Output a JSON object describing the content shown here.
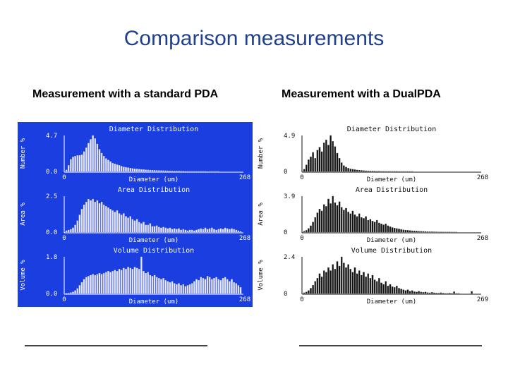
{
  "slide": {
    "title": "Comparison measurements",
    "left_caption": "Measurement with a standard PDA",
    "right_caption": "Measurement with a DualPDA"
  },
  "colors": {
    "title": "#1f3f8f",
    "left_panel_bg": "#1a3ee0",
    "left_text": "#ffffff",
    "left_bar": "#e8e8ff",
    "right_panel_bg": "#ffffff",
    "right_text": "#111111",
    "right_bar": "#111111"
  },
  "chart_data": [
    {
      "panel": "standard-pda",
      "type": "bar",
      "plots": [
        {
          "title": "Diameter Distribution",
          "ylabel": "Number %",
          "xlabel": "Diameter (um)",
          "ylim": [
            0.0,
            4.7
          ],
          "ytick_labels": [
            "4.7",
            "0.0"
          ],
          "xtick_labels": [
            "0",
            "268"
          ],
          "x_range": [
            0,
            268
          ],
          "values": [
            0.2,
            0.8,
            1.6,
            1.9,
            2.0,
            2.1,
            2.1,
            2.2,
            2.6,
            3.1,
            3.7,
            4.2,
            4.7,
            4.3,
            3.6,
            2.9,
            2.4,
            2.0,
            1.7,
            1.5,
            1.3,
            1.1,
            1.0,
            0.9,
            0.8,
            0.7,
            0.6,
            0.55,
            0.5,
            0.45,
            0.4,
            0.36,
            0.33,
            0.3,
            0.27,
            0.25,
            0.22,
            0.2,
            0.18,
            0.17,
            0.15,
            0.14,
            0.13,
            0.12,
            0.11,
            0.1,
            0.09,
            0.08,
            0.08,
            0.07,
            0.06,
            0.06,
            0.05,
            0.05,
            0.04,
            0.04,
            0.03,
            0.03,
            0.03,
            0.02,
            0.02,
            0.02,
            0.02,
            0.02,
            0.01,
            0.01,
            0.01,
            0.01,
            0.01,
            0.01,
            0,
            0,
            0,
            0,
            0,
            0,
            0,
            0,
            0,
            0
          ]
        },
        {
          "title": "Area Distribution",
          "ylabel": "Area %",
          "xlabel": "Diameter (um)",
          "ylim": [
            0.0,
            2.5
          ],
          "ytick_labels": [
            "2.5",
            "0.0"
          ],
          "xtick_labels": [
            "0",
            "268"
          ],
          "x_range": [
            0,
            268
          ],
          "values": [
            0.1,
            0.15,
            0.2,
            0.3,
            0.5,
            0.8,
            1.2,
            1.6,
            1.9,
            2.1,
            2.3,
            2.2,
            2.3,
            2.1,
            2.2,
            2.0,
            2.1,
            1.9,
            1.8,
            1.7,
            1.6,
            1.5,
            1.4,
            1.5,
            1.3,
            1.2,
            1.3,
            1.1,
            1.0,
            1.1,
            0.9,
            0.8,
            0.9,
            0.7,
            0.6,
            0.7,
            0.5,
            0.5,
            0.6,
            0.4,
            0.4,
            0.45,
            0.35,
            0.3,
            0.35,
            0.3,
            0.25,
            0.3,
            0.2,
            0.25,
            0.2,
            0.25,
            0.15,
            0.2,
            0.15,
            0.1,
            0.15,
            0.15,
            0.1,
            0.15,
            0.2,
            0.25,
            0.2,
            0.3,
            0.2,
            0.25,
            0.3,
            0.2,
            0.15,
            0.2,
            0.25,
            0.2,
            0.3,
            0.25,
            0.2,
            0.25,
            0.2,
            0.15,
            0.1,
            0.05
          ]
        },
        {
          "title": "Volume Distribution",
          "ylabel": "Volume %",
          "xlabel": "Diameter (um)",
          "ylim": [
            0.0,
            1.8
          ],
          "ytick_labels": [
            "1.8",
            "0.0"
          ],
          "xtick_labels": [
            "0",
            "268"
          ],
          "x_range": [
            0,
            268
          ],
          "values": [
            0.02,
            0.03,
            0.05,
            0.08,
            0.15,
            0.25,
            0.4,
            0.55,
            0.7,
            0.8,
            0.85,
            0.9,
            0.95,
            0.9,
            0.95,
            1.0,
            0.95,
            1.0,
            1.05,
            1.1,
            1.05,
            1.1,
            1.15,
            1.1,
            1.2,
            1.15,
            1.25,
            1.2,
            1.3,
            1.25,
            1.2,
            1.3,
            1.25,
            1.2,
            1.8,
            1.1,
            1.0,
            1.05,
            0.9,
            0.85,
            0.9,
            0.8,
            0.75,
            0.7,
            0.75,
            0.65,
            0.6,
            0.55,
            0.6,
            0.5,
            0.45,
            0.5,
            0.4,
            0.45,
            0.35,
            0.4,
            0.45,
            0.5,
            0.6,
            0.7,
            0.65,
            0.8,
            0.75,
            0.7,
            0.85,
            0.8,
            0.7,
            0.75,
            0.8,
            0.7,
            0.65,
            0.75,
            0.8,
            0.7,
            0.6,
            0.7,
            0.55,
            0.5,
            0.4,
            0.3
          ]
        }
      ]
    },
    {
      "panel": "dual-pda",
      "type": "bar",
      "plots": [
        {
          "title": "Diameter Distribution",
          "ylabel": "Number %",
          "xlabel": "Diameter (um)",
          "ylim": [
            0,
            4.9
          ],
          "ytick_labels": [
            "4.9",
            "0"
          ],
          "xtick_labels": [
            "0",
            "268"
          ],
          "x_range": [
            0,
            268
          ],
          "values": [
            0.3,
            0.9,
            1.6,
            2.0,
            2.6,
            1.8,
            2.9,
            3.3,
            2.7,
            3.9,
            4.3,
            3.6,
            4.9,
            4.1,
            3.4,
            2.5,
            1.8,
            1.2,
            0.8,
            0.6,
            0.45,
            0.35,
            0.3,
            0.25,
            0.2,
            0.18,
            0.15,
            0.12,
            0.1,
            0.09,
            0.08,
            0.07,
            0.06,
            0.05,
            0.05,
            0.04,
            0.04,
            0.03,
            0.03,
            0.02,
            0.02,
            0.02,
            0.02,
            0.01,
            0.01,
            0.01,
            0.01,
            0.01,
            0.01,
            0.01,
            0,
            0,
            0,
            0,
            0,
            0,
            0,
            0,
            0,
            0,
            0,
            0,
            0,
            0,
            0,
            0,
            0,
            0,
            0,
            0,
            0,
            0,
            0,
            0,
            0,
            0,
            0,
            0,
            0,
            0
          ]
        },
        {
          "title": "Area Distribution",
          "ylabel": "Area %",
          "xlabel": "Diameter (um)",
          "ylim": [
            0,
            3.9
          ],
          "ytick_labels": [
            "3.9",
            "0"
          ],
          "xtick_labels": [
            "0",
            "268"
          ],
          "x_range": [
            0,
            268
          ],
          "values": [
            0.1,
            0.2,
            0.4,
            0.7,
            1.1,
            1.6,
            2.1,
            2.5,
            2.3,
            3.0,
            2.8,
            3.6,
            3.1,
            3.9,
            3.2,
            2.9,
            3.3,
            2.7,
            2.4,
            2.6,
            2.2,
            2.0,
            2.3,
            1.9,
            1.7,
            2.0,
            1.6,
            1.5,
            1.7,
            1.3,
            1.4,
            1.2,
            1.1,
            1.3,
            1.0,
            0.9,
            0.8,
            0.9,
            0.7,
            0.6,
            0.5,
            0.45,
            0.4,
            0.35,
            0.3,
            0.25,
            0.22,
            0.2,
            0.18,
            0.15,
            0.13,
            0.12,
            0.1,
            0.09,
            0.08,
            0.07,
            0.06,
            0.05,
            0.05,
            0.04,
            0.04,
            0.03,
            0.03,
            0.02,
            0.02,
            0.02,
            0.02,
            0.01,
            0.01,
            0.01,
            0,
            0,
            0,
            0,
            0,
            0,
            0,
            0,
            0,
            0
          ]
        },
        {
          "title": "Volume Distribution",
          "ylabel": "Volume %",
          "xlabel": "Diameter (um)",
          "ylim": [
            0,
            2.4
          ],
          "ytick_labels": [
            "2.4",
            "0"
          ],
          "xtick_labels": [
            "0",
            "269"
          ],
          "x_range": [
            0,
            269
          ],
          "values": [
            0.05,
            0.1,
            0.2,
            0.35,
            0.55,
            0.8,
            1.0,
            1.3,
            1.1,
            1.5,
            1.4,
            1.7,
            1.5,
            1.9,
            1.6,
            2.1,
            1.8,
            2.4,
            2.0,
            1.7,
            1.9,
            1.6,
            1.4,
            1.7,
            1.3,
            1.5,
            1.2,
            1.4,
            1.1,
            1.3,
            1.0,
            1.2,
            0.9,
            0.8,
            1.0,
            0.7,
            0.6,
            0.8,
            0.5,
            0.6,
            0.45,
            0.4,
            0.5,
            0.35,
            0.3,
            0.25,
            0.2,
            0.25,
            0.15,
            0.2,
            0.12,
            0.1,
            0.15,
            0.1,
            0.08,
            0.1,
            0.06,
            0.05,
            0.08,
            0.05,
            0.04,
            0.03,
            0.06,
            0.03,
            0.02,
            0.02,
            0.03,
            0.02,
            0.12,
            0.01,
            0.01,
            0,
            0,
            0,
            0,
            0,
            0.14,
            0,
            0,
            0
          ]
        }
      ]
    }
  ]
}
